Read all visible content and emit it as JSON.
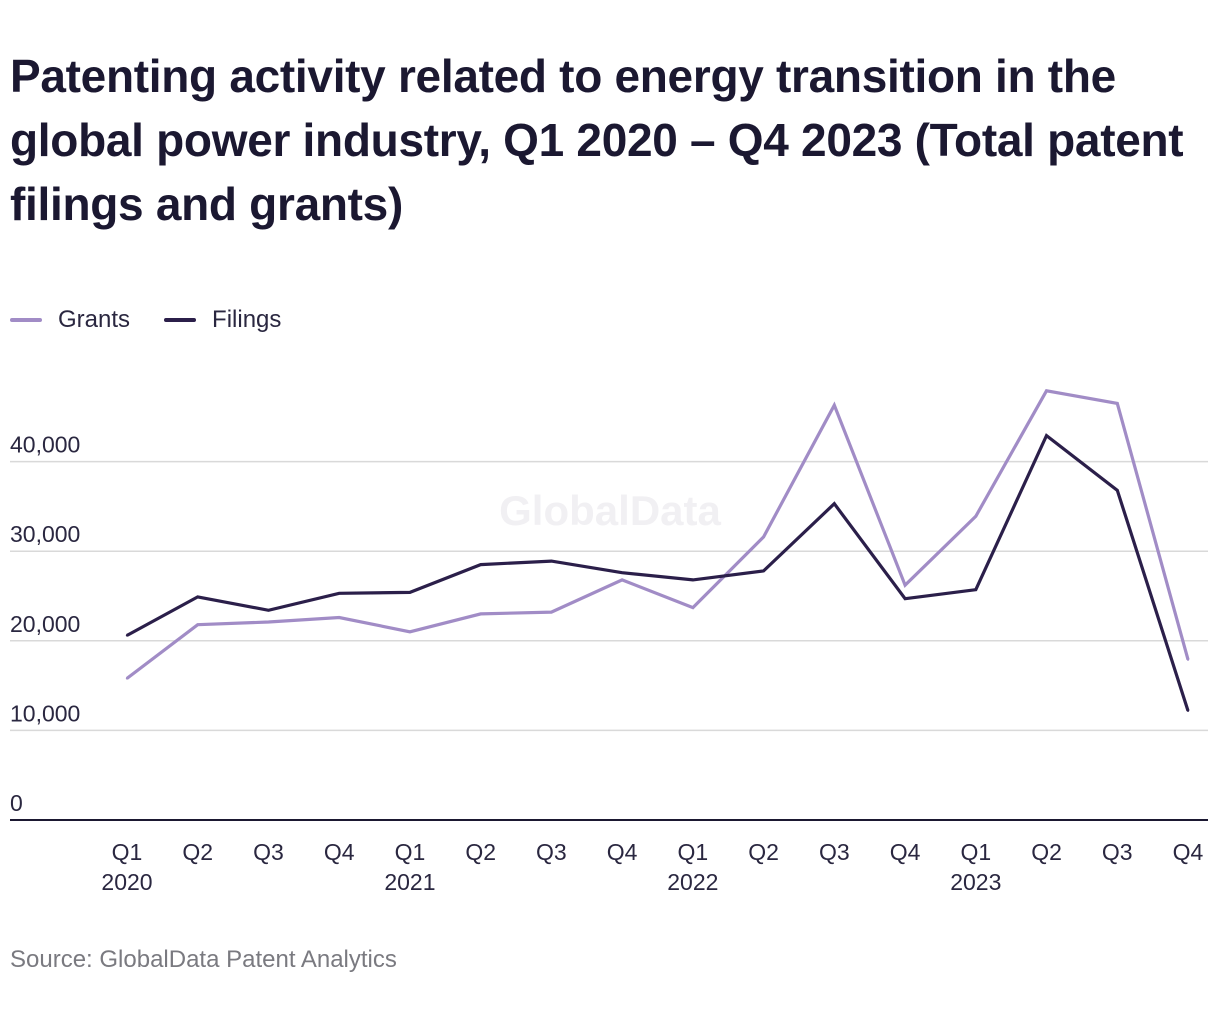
{
  "title": "Patenting activity related to energy transition in the global power industry, Q1 2020 – Q4 2023 (Total patent filings and grants)",
  "watermark": "GlobalData",
  "source": "Source: GlobalData Patent Analytics",
  "colors": {
    "grants": "#a18cc6",
    "filings": "#2b1f4a",
    "grid": "#d9d9d9",
    "axis": "#1b1831"
  },
  "chart_data": {
    "type": "line",
    "categories": [
      "Q1",
      "Q2",
      "Q3",
      "Q4",
      "Q1",
      "Q2",
      "Q3",
      "Q4",
      "Q1",
      "Q2",
      "Q3",
      "Q4",
      "Q1",
      "Q2",
      "Q3",
      "Q4"
    ],
    "year_labels": [
      "2020",
      "",
      "",
      "",
      "2021",
      "",
      "",
      "",
      "2022",
      "",
      "",
      "",
      "2023",
      "",
      "",
      ""
    ],
    "series": [
      {
        "name": "Grants",
        "values": [
          15800,
          21800,
          22100,
          22600,
          21000,
          23000,
          23200,
          26800,
          23700,
          31600,
          46300,
          26200,
          33900,
          47900,
          46500,
          17900
        ]
      },
      {
        "name": "Filings",
        "values": [
          20600,
          24900,
          23400,
          25300,
          25400,
          28500,
          28900,
          27600,
          26800,
          27800,
          35300,
          24700,
          25700,
          42900,
          36800,
          12200
        ]
      }
    ],
    "yticks": [
      0,
      10000,
      20000,
      30000,
      40000
    ],
    "ytick_labels": [
      "0",
      "10,000",
      "20,000",
      "30,000",
      "40,000"
    ],
    "ylim": [
      0,
      50000
    ],
    "grid": true,
    "legend_position": "top-left"
  }
}
